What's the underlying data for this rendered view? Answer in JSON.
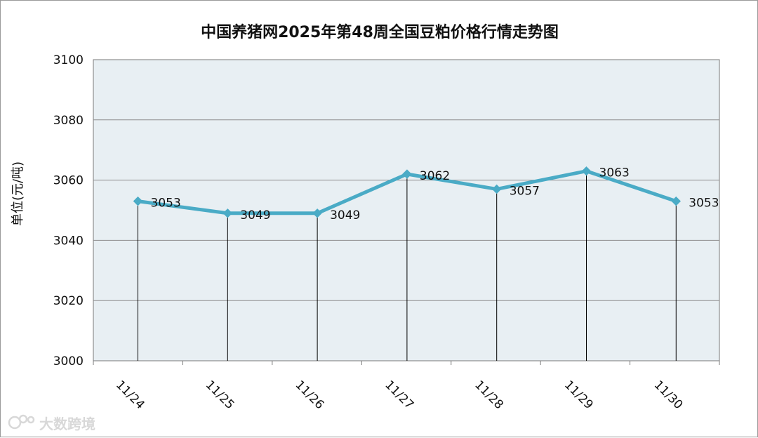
{
  "chart_data": {
    "type": "line",
    "title": "中国养猪网2025年第48周全国豆粕价格行情走势图",
    "xlabel": "",
    "ylabel": "单位(元/吨)",
    "categories": [
      "11/24",
      "11/25",
      "11/26",
      "11/27",
      "11/28",
      "11/29",
      "11/30"
    ],
    "series": [
      {
        "values": [
          3053,
          3049,
          3049,
          3062,
          3057,
          3063,
          3053
        ]
      }
    ],
    "data_labels": [
      "3053",
      "3049",
      "3049",
      "3062",
      "3057",
      "3063",
      "3053"
    ],
    "ylim": [
      3000,
      3100
    ],
    "yticks": [
      3000,
      3020,
      3040,
      3060,
      3080,
      3100
    ],
    "grid": true,
    "legend": "none",
    "colors": {
      "line": "#4aabc6",
      "plot_background": "#e8eff3",
      "grid": "#8c8c8c",
      "drop_line": "#000000"
    }
  },
  "watermark": {
    "text": "大数跨境",
    "icon": "logo-icon"
  }
}
